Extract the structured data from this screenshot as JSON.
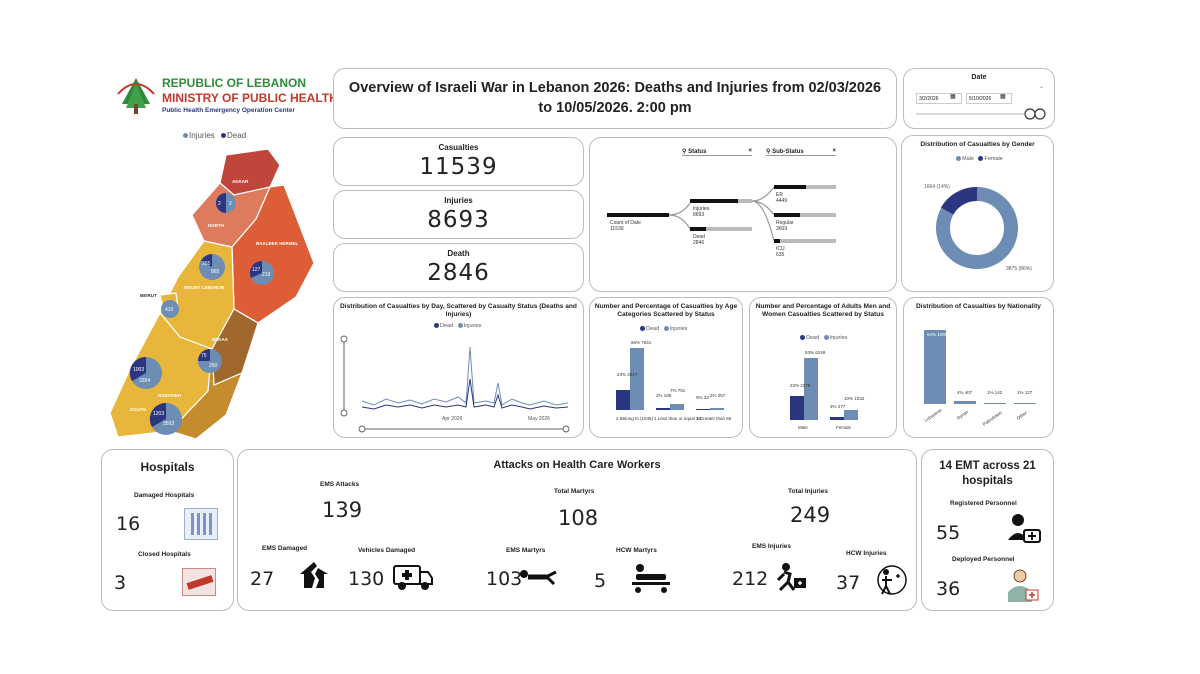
{
  "header": {
    "ministry_line1": "REPUBLIC OF LEBANON",
    "ministry_line2": "MINISTRY OF PUBLIC HEALTH",
    "ministry_line3": "Public Health Emergency Operation Center",
    "title": "Overview of Israeli War in Lebanon 2026: Deaths and Injuries from 02/03/2026 to 10/05/2026. 2:00 pm"
  },
  "date_filter": {
    "label": "Date",
    "start": "3/2/2026",
    "end": "5/10/2026"
  },
  "map": {
    "legend": [
      "Injuries",
      "Dead"
    ],
    "regions": [
      "AKKAR",
      "NORTH",
      "BAALBEK HERMEL",
      "MOUNT LEBANON",
      "BEIRUT",
      "BEKAA",
      "SOUTH",
      "NABATIEH"
    ],
    "pies": [
      {
        "region": "AKKAR/NORTH",
        "dead": "2",
        "injuries": "2"
      },
      {
        "region": "MOUNT LEBANON",
        "dead": "265",
        "injuries": "865"
      },
      {
        "region": "BAALBEK HERMEL",
        "dead": "127",
        "injuries": "219"
      },
      {
        "region": "BEIRUT",
        "dead": "",
        "injuries": "410"
      },
      {
        "region": "BEKAA",
        "dead": "75",
        "injuries": "250"
      },
      {
        "region": "SOUTH",
        "dead": "1003",
        "injuries": "3354"
      },
      {
        "region": "NABATIEH",
        "dead": "1203",
        "injuries": "3593"
      }
    ]
  },
  "kpis": {
    "casualties_label": "Casualties",
    "casualties": "11539",
    "injuries_label": "Injuries",
    "injuries": "8693",
    "death_label": "Death",
    "death": "2846"
  },
  "tree": {
    "status_label": "Status",
    "substatus_label": "Sub-Status",
    "root_label": "Count of Date",
    "root_value": "11539",
    "injuries_label": "Injuries",
    "injuries_value": "8693",
    "dead_label": "Dead",
    "dead_value": "2846",
    "er_label": "ER",
    "er_value": "4449",
    "regular_label": "Regular",
    "regular_value": "3609",
    "icu_label": "ICU",
    "icu_value": "635"
  },
  "gender": {
    "title": "Distribution of Casualties by Gender",
    "legend": [
      "Male",
      "Female"
    ],
    "female_label": "1664 (14%)",
    "male_label": "9875 (86%)",
    "colors": {
      "male": "#6d8db5",
      "female": "#2b3580"
    }
  },
  "daily": {
    "title": "Distribution of Casualties by Day, Scattered by Casualty Status (Deaths and Injuries)",
    "legend": [
      "Dead",
      "Injuries"
    ],
    "x_labels": [
      "Apr 2026",
      "May 2026"
    ]
  },
  "age": {
    "title": "Number and Percentage of Casualties by Age Categories Scattered by Status",
    "legend": [
      "Dead",
      "Injuries"
    ],
    "categories": [
      "2.Belong to (1535)",
      "1.Less than or equal 18",
      "3.Greater than 65"
    ],
    "dead": [
      "23% 2617",
      "2% 196",
      "0% 33"
    ],
    "injuries": [
      "66% 7641",
      "7% 791",
      "2% 257"
    ]
  },
  "adults": {
    "title": "Number and Percentage of Adults Men and Women Casualties Scattered by Status",
    "legend": [
      "Dead",
      "Injuries"
    ],
    "categories": [
      "Male",
      "Female"
    ],
    "dead": [
      "23% 2275",
      "3% 277"
    ],
    "injuries": [
      "63% 6248",
      "10% 1032"
    ]
  },
  "nationality": {
    "title": "Distribution of Casualties by Nationality",
    "bars": [
      {
        "label": "Lebanese",
        "value": "94% 10863"
      },
      {
        "label": "Syrian",
        "value": "4% 407"
      },
      {
        "label": "Palestinian",
        "value": "1% 142"
      },
      {
        "label": "Other",
        "value": "1% 127"
      }
    ]
  },
  "hospitals": {
    "title": "Hospitals",
    "damaged_label": "Damaged Hospitals",
    "damaged": "16",
    "closed_label": "Closed Hospitals",
    "closed": "3"
  },
  "attacks": {
    "title": "Attacks on Health Care Workers",
    "ems_attacks_label": "EMS Attacks",
    "ems_attacks": "139",
    "total_martyrs_label": "Total Martyrs",
    "total_martyrs": "108",
    "total_injuries_label": "Total Injuries",
    "total_injuries": "249",
    "ems_damaged_label": "EMS Damaged",
    "ems_damaged": "27",
    "vehicles_damaged_label": "Vehicles Damaged",
    "vehicles_damaged": "130",
    "ems_martyrs_label": "EMS Martyrs",
    "ems_martyrs": "103",
    "hcw_martyrs_label": "HCW Martyrs",
    "hcw_martyrs": "5",
    "ems_injuries_label": "EMS Injuries",
    "ems_injuries": "212",
    "hcw_injuries_label": "HCW Injuries",
    "hcw_injuries": "37"
  },
  "emt": {
    "title": "14 EMT across 21 hospitals",
    "registered_label": "Registered Personnel",
    "registered": "55",
    "deployed_label": "Deployed Personnel",
    "deployed": "36"
  }
}
